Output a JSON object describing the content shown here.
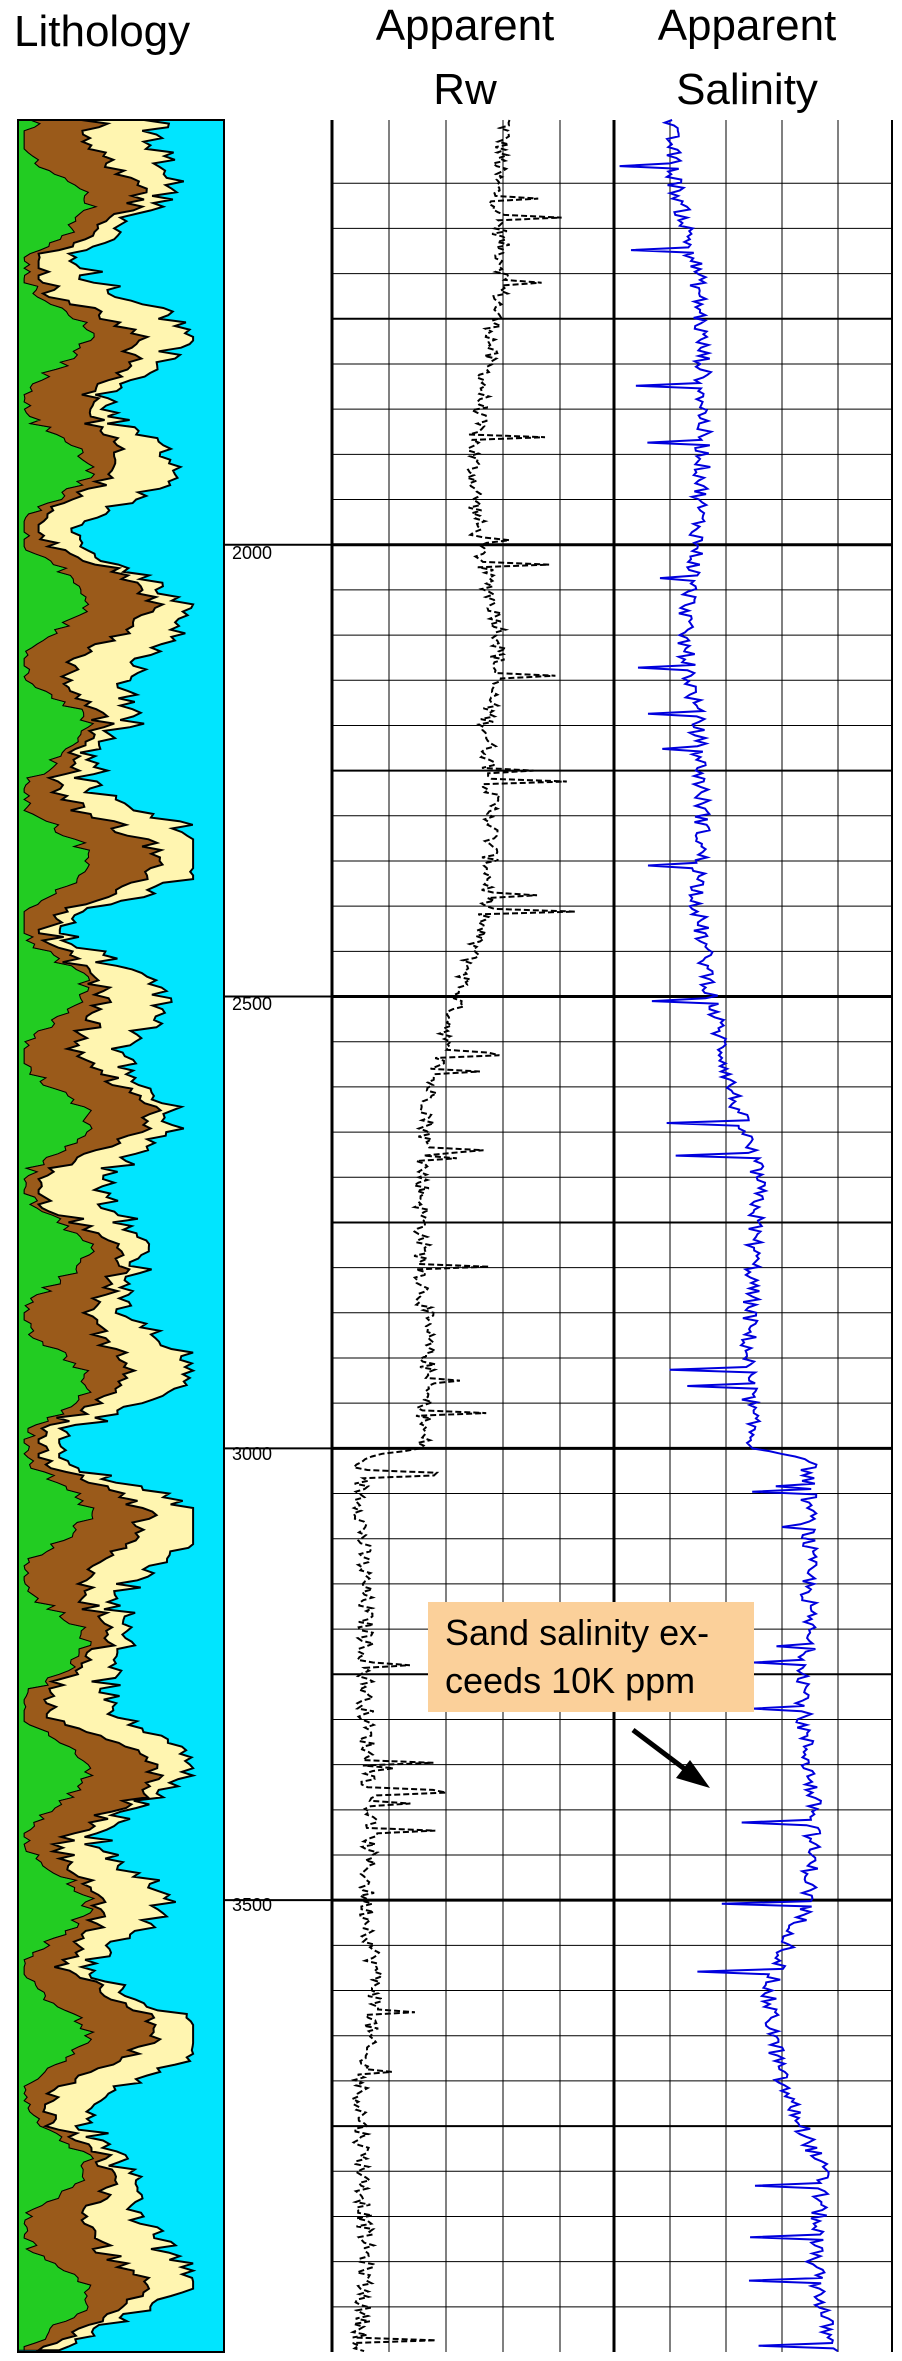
{
  "headers": {
    "lithology": "Lithology",
    "rw_line1": "Apparent",
    "rw_line2": "Rw",
    "sal_line1": "Apparent",
    "sal_line2": "Salinity"
  },
  "annotation": {
    "line1": "Sand salinity ex-",
    "line2": "ceeds 10K ppm",
    "box_color": "#fbd09a"
  },
  "colors": {
    "shale": "#22cc22",
    "sand": "#fff5b0",
    "silt": "#9a5a1a",
    "water": "#00e5ff",
    "rw_curve": "#000000",
    "salinity_curve": "#0000dd"
  },
  "chart_data": {
    "type": "line",
    "depth_axis": {
      "range": [
        1530,
        4000
      ],
      "ticks": [
        2000,
        2500,
        3000,
        3500
      ]
    },
    "tracks": [
      {
        "name": "Lithology",
        "kind": "stacked-area",
        "components": [
          "shale",
          "silt",
          "sand",
          "water"
        ]
      },
      {
        "name": "Apparent Rw",
        "kind": "line",
        "style": "dashed",
        "points": [
          [
            1530,
            0.62
          ],
          [
            1600,
            0.58
          ],
          [
            1700,
            0.61
          ],
          [
            1800,
            0.55
          ],
          [
            1900,
            0.5
          ],
          [
            2000,
            0.52
          ],
          [
            2100,
            0.6
          ],
          [
            2200,
            0.55
          ],
          [
            2300,
            0.57
          ],
          [
            2400,
            0.55
          ],
          [
            2500,
            0.45
          ],
          [
            2600,
            0.35
          ],
          [
            2700,
            0.32
          ],
          [
            2800,
            0.32
          ],
          [
            2900,
            0.34
          ],
          [
            3000,
            0.32
          ],
          [
            3010,
            0.1
          ],
          [
            3200,
            0.12
          ],
          [
            3300,
            0.12
          ],
          [
            3400,
            0.14
          ],
          [
            3500,
            0.12
          ],
          [
            3600,
            0.16
          ],
          [
            3700,
            0.1
          ],
          [
            3800,
            0.11
          ],
          [
            3900,
            0.12
          ],
          [
            4000,
            0.1
          ]
        ]
      },
      {
        "name": "Apparent Salinity",
        "kind": "line",
        "points": [
          [
            1530,
            0.2
          ],
          [
            1600,
            0.22
          ],
          [
            1700,
            0.3
          ],
          [
            1800,
            0.32
          ],
          [
            1900,
            0.32
          ],
          [
            2000,
            0.3
          ],
          [
            2100,
            0.25
          ],
          [
            2200,
            0.3
          ],
          [
            2300,
            0.32
          ],
          [
            2400,
            0.3
          ],
          [
            2500,
            0.35
          ],
          [
            2600,
            0.42
          ],
          [
            2700,
            0.52
          ],
          [
            2800,
            0.5
          ],
          [
            2900,
            0.48
          ],
          [
            3000,
            0.5
          ],
          [
            3010,
            0.7
          ],
          [
            3200,
            0.7
          ],
          [
            3300,
            0.68
          ],
          [
            3400,
            0.72
          ],
          [
            3500,
            0.7
          ],
          [
            3600,
            0.55
          ],
          [
            3700,
            0.6
          ],
          [
            3800,
            0.75
          ],
          [
            3900,
            0.72
          ],
          [
            4000,
            0.78
          ]
        ]
      }
    ]
  }
}
